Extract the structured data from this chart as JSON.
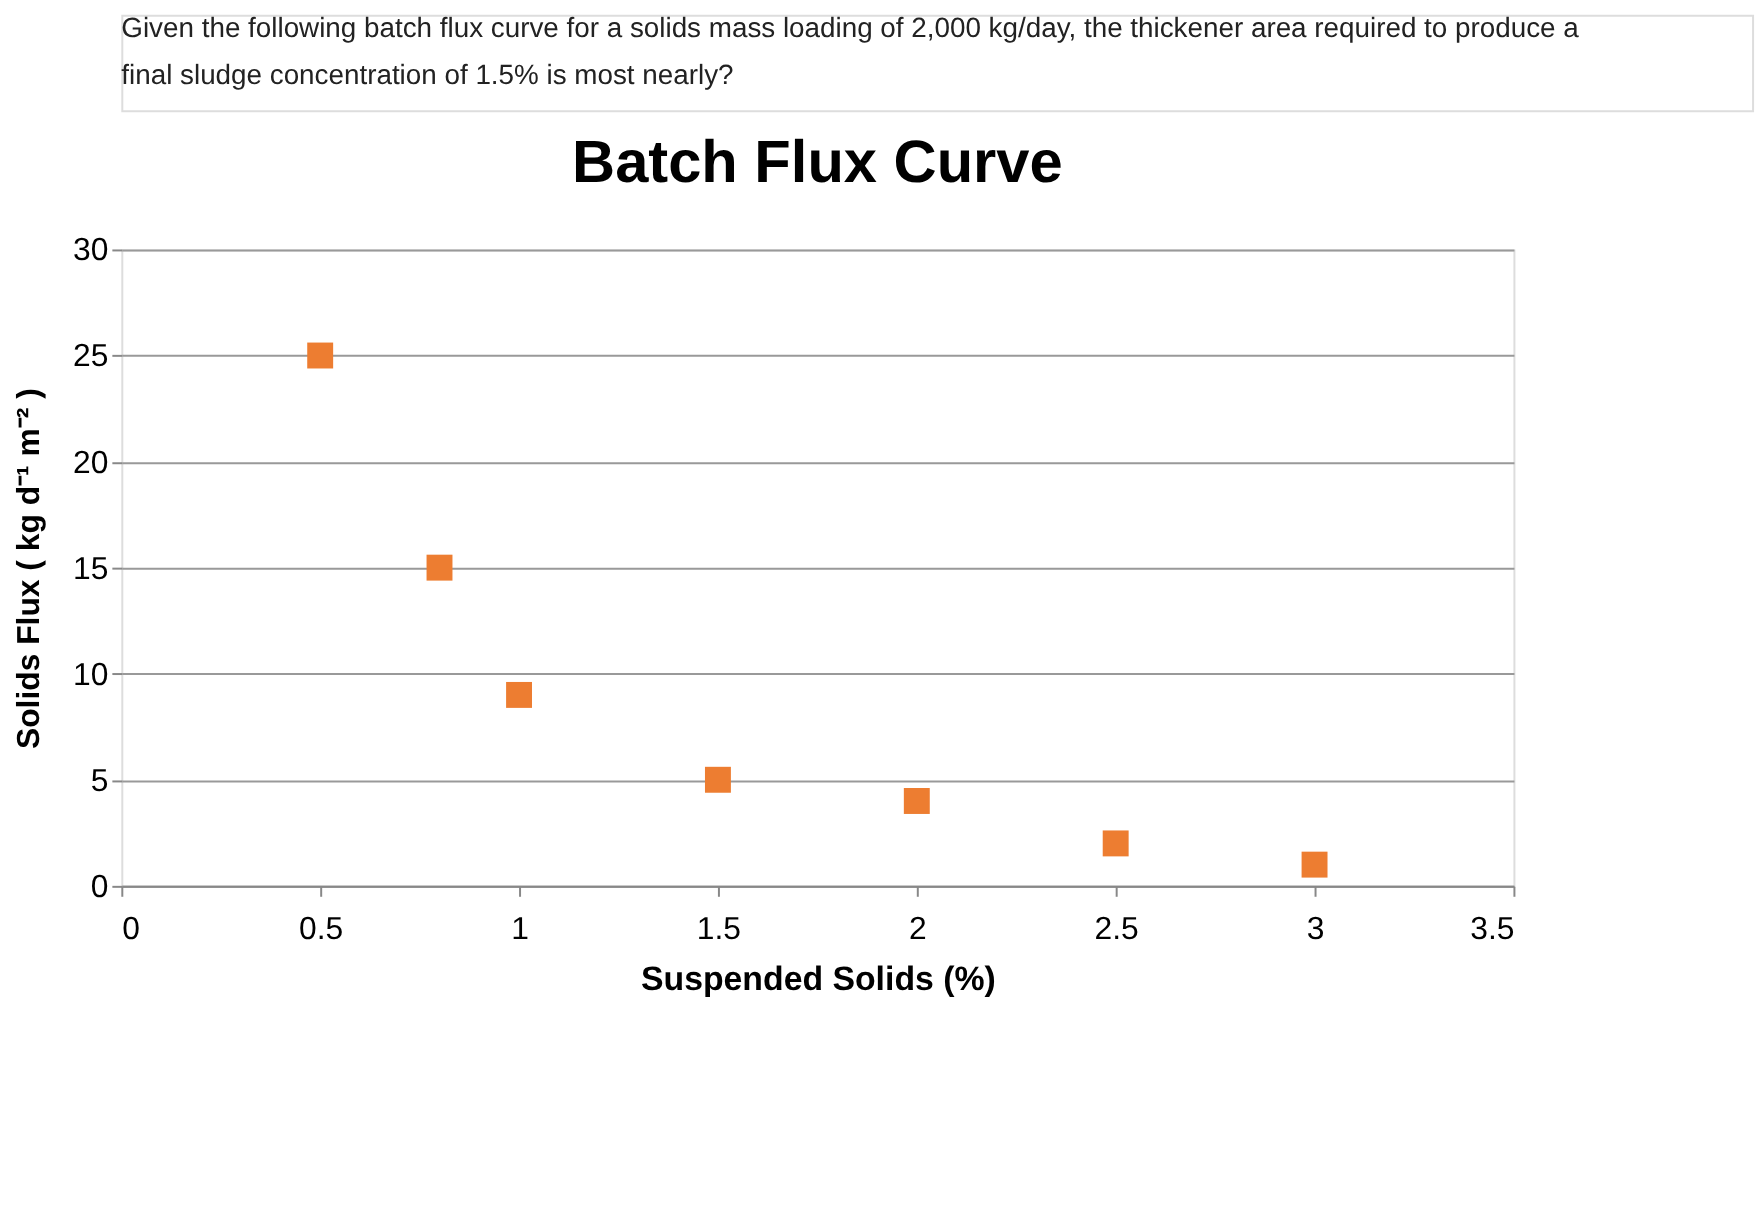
{
  "chart_data": {
    "type": "scatter",
    "title": "Batch Flux Curve",
    "xlabel": "Suspended Solids (%)",
    "ylabel": "Solids Flux ( kg d⁻¹ m⁻² )",
    "annotations": [
      "Given the following batch flux curve for a solids mass loading of 2,000 kg/day, the thickener area required to produce a final sludge concentration of 1.5% is most nearly?"
    ],
    "x": [
      0.5,
      0.8,
      1,
      1.5,
      2,
      2.5,
      3
    ],
    "series": [
      {
        "color": "#ed7d31",
        "values": [
          25,
          15,
          9,
          5,
          4,
          2,
          1
        ]
      }
    ],
    "xlim": [
      0,
      3.5
    ],
    "xticks": [
      0,
      0.5,
      1,
      1.5,
      2,
      2.5,
      3,
      3.5
    ],
    "ylim": [
      0,
      30
    ],
    "yticks": [
      0,
      5,
      10,
      15,
      20,
      25,
      30
    ],
    "grid": "y",
    "marker": "square",
    "legend": false
  }
}
